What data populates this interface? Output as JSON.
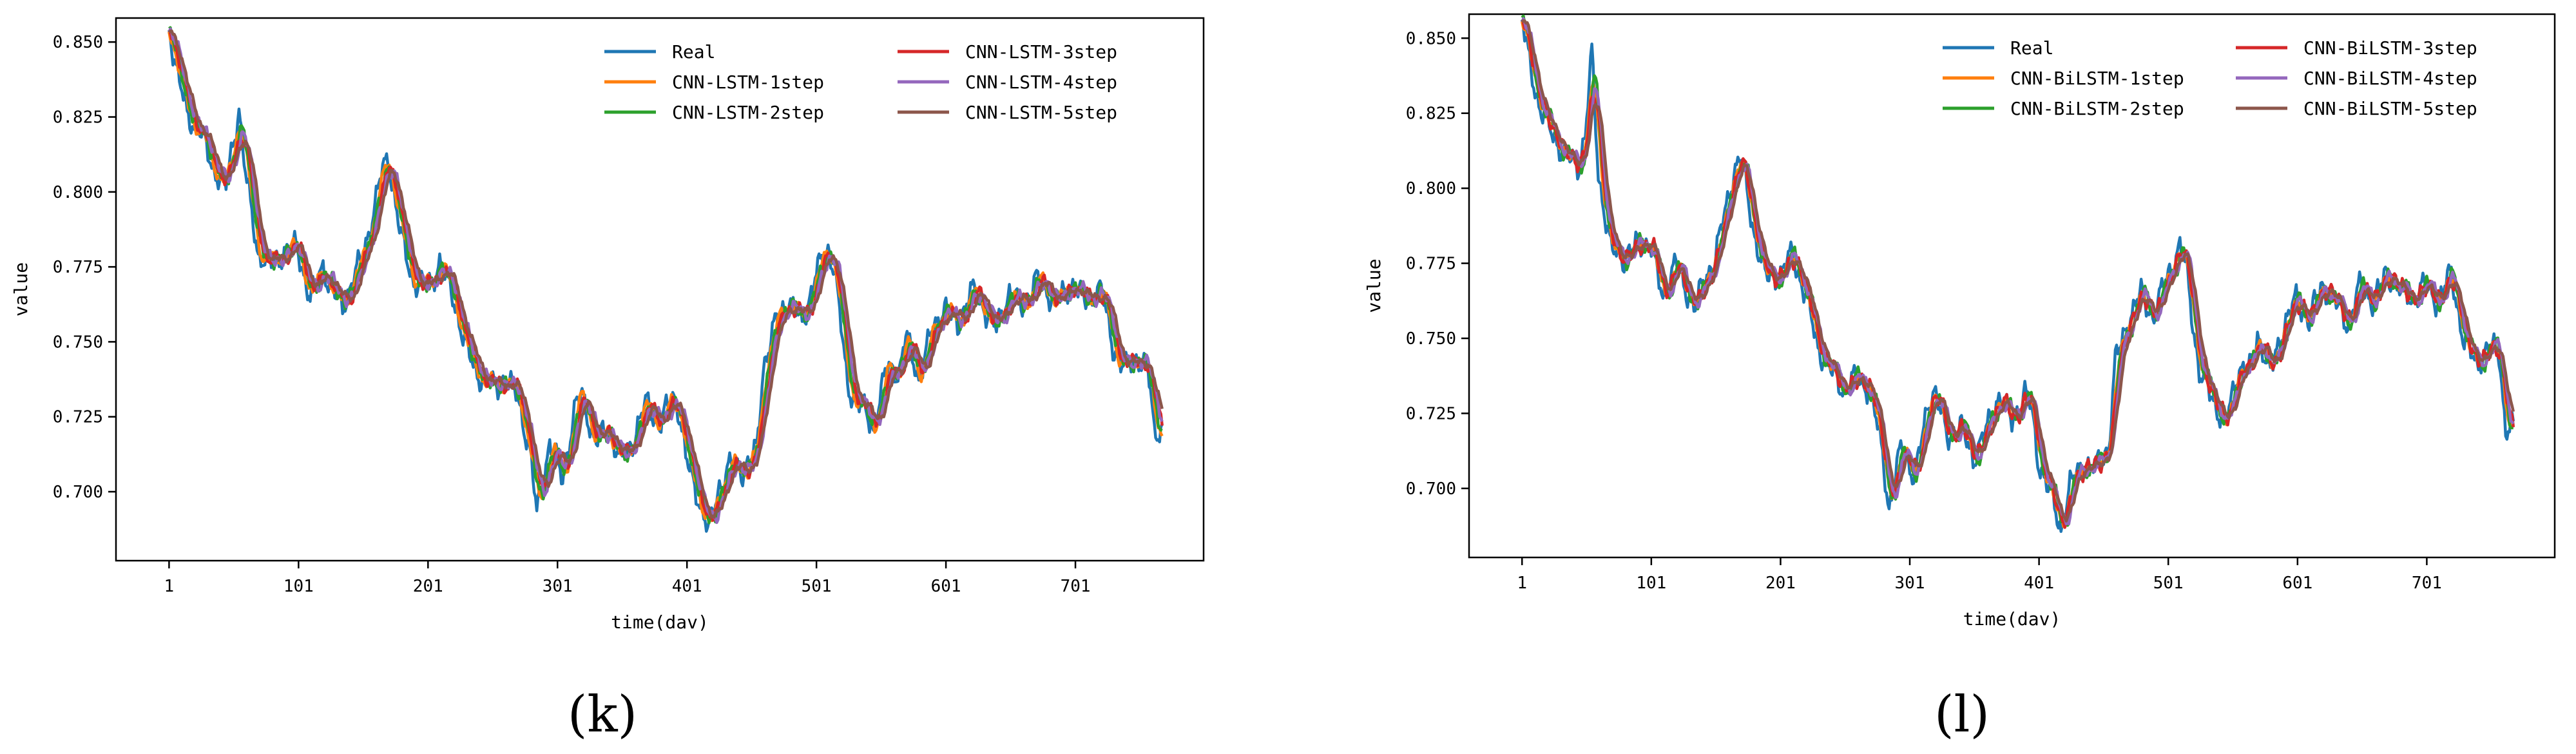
{
  "panels": [
    {
      "label": "(k)",
      "chart_data": {
        "type": "line",
        "xlabel": "time(dav)",
        "ylabel": "value",
        "xticks": [
          "1",
          "101",
          "201",
          "301",
          "401",
          "501",
          "601",
          "701"
        ],
        "yticks": [
          "0.700",
          "0.725",
          "0.750",
          "0.775",
          "0.800",
          "0.825",
          "0.850"
        ],
        "xlim": [
          -40,
          800
        ],
        "ylim": [
          0.677,
          0.858
        ],
        "grid": false,
        "legend_position": "top-right",
        "real_anchors": [
          [
            1,
            0.855
          ],
          [
            8,
            0.838
          ],
          [
            15,
            0.826
          ],
          [
            25,
            0.82
          ],
          [
            35,
            0.808
          ],
          [
            45,
            0.802
          ],
          [
            50,
            0.815
          ],
          [
            55,
            0.828
          ],
          [
            60,
            0.806
          ],
          [
            70,
            0.779
          ],
          [
            80,
            0.776
          ],
          [
            90,
            0.78
          ],
          [
            100,
            0.782
          ],
          [
            110,
            0.764
          ],
          [
            120,
            0.776
          ],
          [
            125,
            0.768
          ],
          [
            135,
            0.762
          ],
          [
            150,
            0.778
          ],
          [
            160,
            0.795
          ],
          [
            165,
            0.806
          ],
          [
            170,
            0.812
          ],
          [
            180,
            0.785
          ],
          [
            190,
            0.77
          ],
          [
            200,
            0.768
          ],
          [
            210,
            0.776
          ],
          [
            220,
            0.766
          ],
          [
            230,
            0.748
          ],
          [
            240,
            0.739
          ],
          [
            250,
            0.735
          ],
          [
            260,
            0.737
          ],
          [
            270,
            0.733
          ],
          [
            280,
            0.712
          ],
          [
            285,
            0.693
          ],
          [
            295,
            0.716
          ],
          [
            305,
            0.705
          ],
          [
            315,
            0.728
          ],
          [
            320,
            0.733
          ],
          [
            330,
            0.716
          ],
          [
            340,
            0.721
          ],
          [
            350,
            0.71
          ],
          [
            360,
            0.718
          ],
          [
            370,
            0.73
          ],
          [
            380,
            0.722
          ],
          [
            390,
            0.732
          ],
          [
            395,
            0.727
          ],
          [
            400,
            0.711
          ],
          [
            410,
            0.698
          ],
          [
            418,
            0.686
          ],
          [
            425,
            0.701
          ],
          [
            435,
            0.709
          ],
          [
            445,
            0.707
          ],
          [
            455,
            0.714
          ],
          [
            460,
            0.742
          ],
          [
            470,
            0.757
          ],
          [
            480,
            0.764
          ],
          [
            490,
            0.756
          ],
          [
            500,
            0.772
          ],
          [
            510,
            0.781
          ],
          [
            515,
            0.775
          ],
          [
            525,
            0.735
          ],
          [
            535,
            0.729
          ],
          [
            545,
            0.721
          ],
          [
            555,
            0.741
          ],
          [
            565,
            0.74
          ],
          [
            570,
            0.752
          ],
          [
            580,
            0.738
          ],
          [
            590,
            0.753
          ],
          [
            600,
            0.762
          ],
          [
            610,
            0.755
          ],
          [
            620,
            0.767
          ],
          [
            630,
            0.762
          ],
          [
            640,
            0.754
          ],
          [
            650,
            0.767
          ],
          [
            660,
            0.761
          ],
          [
            670,
            0.771
          ],
          [
            680,
            0.766
          ],
          [
            690,
            0.764
          ],
          [
            700,
            0.77
          ],
          [
            710,
            0.762
          ],
          [
            720,
            0.769
          ],
          [
            730,
            0.748
          ],
          [
            740,
            0.741
          ],
          [
            750,
            0.745
          ],
          [
            757,
            0.741
          ],
          [
            762,
            0.719
          ],
          [
            768,
            0.722
          ]
        ],
        "series": [
          {
            "name": "Real",
            "color": "#1f77b4",
            "lag": 0,
            "smooth": 1,
            "amp": 0
          },
          {
            "name": "CNN-LSTM-1step",
            "color": "#ff7f0e",
            "lag": 2,
            "smooth": 3,
            "amp": 0.002
          },
          {
            "name": "CNN-LSTM-2step",
            "color": "#2ca02c",
            "lag": 3,
            "smooth": 4,
            "amp": 0.003
          },
          {
            "name": "CNN-LSTM-3step",
            "color": "#d62728",
            "lag": 4,
            "smooth": 5,
            "amp": 0.0025
          },
          {
            "name": "CNN-LSTM-4step",
            "color": "#9467bd",
            "lag": 5,
            "smooth": 5,
            "amp": 0.002
          },
          {
            "name": "CNN-LSTM-5step",
            "color": "#8c564b",
            "lag": 6,
            "smooth": 6,
            "amp": 0.0015
          }
        ]
      }
    },
    {
      "label": "(l)",
      "chart_data": {
        "type": "line",
        "xlabel": "time(dav)",
        "ylabel": "value",
        "xticks": [
          "1",
          "101",
          "201",
          "301",
          "401",
          "501",
          "601",
          "701"
        ],
        "yticks": [
          "0.700",
          "0.725",
          "0.750",
          "0.775",
          "0.800",
          "0.825",
          "0.850"
        ],
        "xlim": [
          -40,
          800
        ],
        "ylim": [
          0.677,
          0.858
        ],
        "grid": false,
        "legend_position": "top-right",
        "real_anchors": [
          [
            1,
            0.855
          ],
          [
            8,
            0.84
          ],
          [
            15,
            0.826
          ],
          [
            25,
            0.818
          ],
          [
            35,
            0.81
          ],
          [
            45,
            0.808
          ],
          [
            50,
            0.818
          ],
          [
            55,
            0.845
          ],
          [
            60,
            0.805
          ],
          [
            70,
            0.779
          ],
          [
            80,
            0.777
          ],
          [
            90,
            0.781
          ],
          [
            100,
            0.782
          ],
          [
            110,
            0.763
          ],
          [
            120,
            0.776
          ],
          [
            125,
            0.768
          ],
          [
            135,
            0.761
          ],
          [
            150,
            0.777
          ],
          [
            160,
            0.795
          ],
          [
            165,
            0.806
          ],
          [
            170,
            0.811
          ],
          [
            180,
            0.786
          ],
          [
            190,
            0.77
          ],
          [
            200,
            0.771
          ],
          [
            210,
            0.778
          ],
          [
            220,
            0.765
          ],
          [
            230,
            0.747
          ],
          [
            240,
            0.739
          ],
          [
            250,
            0.733
          ],
          [
            260,
            0.737
          ],
          [
            270,
            0.733
          ],
          [
            280,
            0.712
          ],
          [
            285,
            0.693
          ],
          [
            295,
            0.715
          ],
          [
            305,
            0.703
          ],
          [
            315,
            0.728
          ],
          [
            320,
            0.733
          ],
          [
            330,
            0.717
          ],
          [
            340,
            0.721
          ],
          [
            350,
            0.71
          ],
          [
            360,
            0.719
          ],
          [
            370,
            0.731
          ],
          [
            380,
            0.722
          ],
          [
            390,
            0.732
          ],
          [
            395,
            0.727
          ],
          [
            400,
            0.71
          ],
          [
            410,
            0.698
          ],
          [
            418,
            0.686
          ],
          [
            425,
            0.701
          ],
          [
            435,
            0.708
          ],
          [
            445,
            0.707
          ],
          [
            455,
            0.714
          ],
          [
            460,
            0.742
          ],
          [
            470,
            0.756
          ],
          [
            480,
            0.765
          ],
          [
            490,
            0.757
          ],
          [
            500,
            0.771
          ],
          [
            510,
            0.78
          ],
          [
            515,
            0.774
          ],
          [
            525,
            0.738
          ],
          [
            535,
            0.731
          ],
          [
            545,
            0.72
          ],
          [
            555,
            0.74
          ],
          [
            565,
            0.74
          ],
          [
            570,
            0.752
          ],
          [
            580,
            0.738
          ],
          [
            590,
            0.754
          ],
          [
            600,
            0.763
          ],
          [
            610,
            0.756
          ],
          [
            620,
            0.768
          ],
          [
            630,
            0.762
          ],
          [
            640,
            0.755
          ],
          [
            650,
            0.768
          ],
          [
            660,
            0.762
          ],
          [
            670,
            0.772
          ],
          [
            680,
            0.766
          ],
          [
            690,
            0.763
          ],
          [
            700,
            0.768
          ],
          [
            710,
            0.762
          ],
          [
            720,
            0.772
          ],
          [
            730,
            0.748
          ],
          [
            740,
            0.742
          ],
          [
            750,
            0.747
          ],
          [
            757,
            0.746
          ],
          [
            762,
            0.719
          ],
          [
            768,
            0.72
          ]
        ],
        "series": [
          {
            "name": "Real",
            "color": "#1f77b4",
            "lag": 0,
            "smooth": 1,
            "amp": 0
          },
          {
            "name": "CNN-BiLSTM-1step",
            "color": "#ff7f0e",
            "lag": 2,
            "smooth": 3,
            "amp": 0.0018
          },
          {
            "name": "CNN-BiLSTM-2step",
            "color": "#2ca02c",
            "lag": 3,
            "smooth": 3,
            "amp": 0.0025
          },
          {
            "name": "CNN-BiLSTM-3step",
            "color": "#d62728",
            "lag": 3,
            "smooth": 4,
            "amp": 0.003
          },
          {
            "name": "CNN-BiLSTM-4step",
            "color": "#9467bd",
            "lag": 4,
            "smooth": 4,
            "amp": 0.002
          },
          {
            "name": "CNN-BiLSTM-5step",
            "color": "#8c564b",
            "lag": 5,
            "smooth": 5,
            "amp": 0.0015
          }
        ]
      }
    }
  ]
}
